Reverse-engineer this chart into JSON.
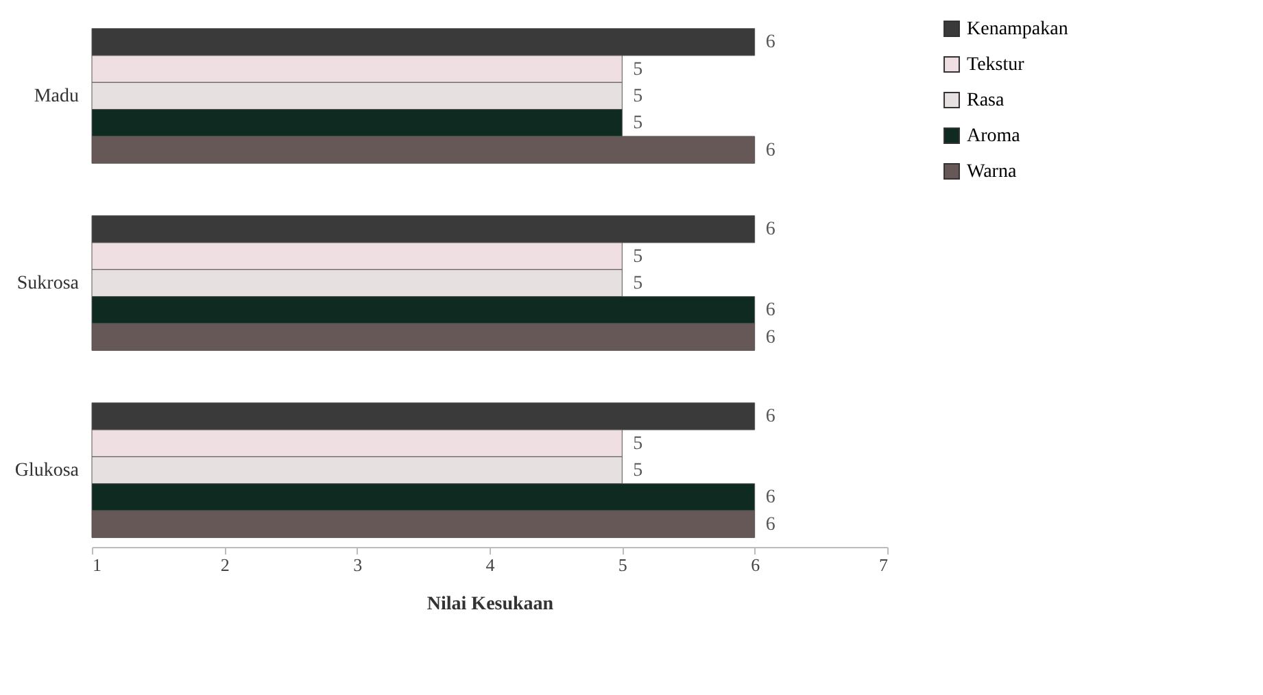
{
  "chart_data": {
    "type": "bar",
    "orientation": "horizontal",
    "xlabel": "Nilai Kesukaan",
    "categories": [
      "Madu",
      "Sukrosa",
      "Glukosa"
    ],
    "series": [
      {
        "name": "Kenampakan",
        "color": "#3a3a3a",
        "values": [
          6,
          6,
          6
        ]
      },
      {
        "name": "Tekstur",
        "color": "#f0dfe2",
        "values": [
          5,
          5,
          5
        ]
      },
      {
        "name": "Rasa",
        "color": "#e6e0e0",
        "values": [
          5,
          5,
          5
        ]
      },
      {
        "name": "Aroma",
        "color": "#0f2a20",
        "values": [
          5,
          6,
          6
        ]
      },
      {
        "name": "Warna",
        "color": "#675858",
        "values": [
          6,
          6,
          6
        ]
      }
    ],
    "xlim": [
      1,
      7
    ],
    "xticks": [
      1,
      2,
      3,
      4,
      5,
      6,
      7
    ],
    "grid": false,
    "legend": "right",
    "data_labels": true
  }
}
